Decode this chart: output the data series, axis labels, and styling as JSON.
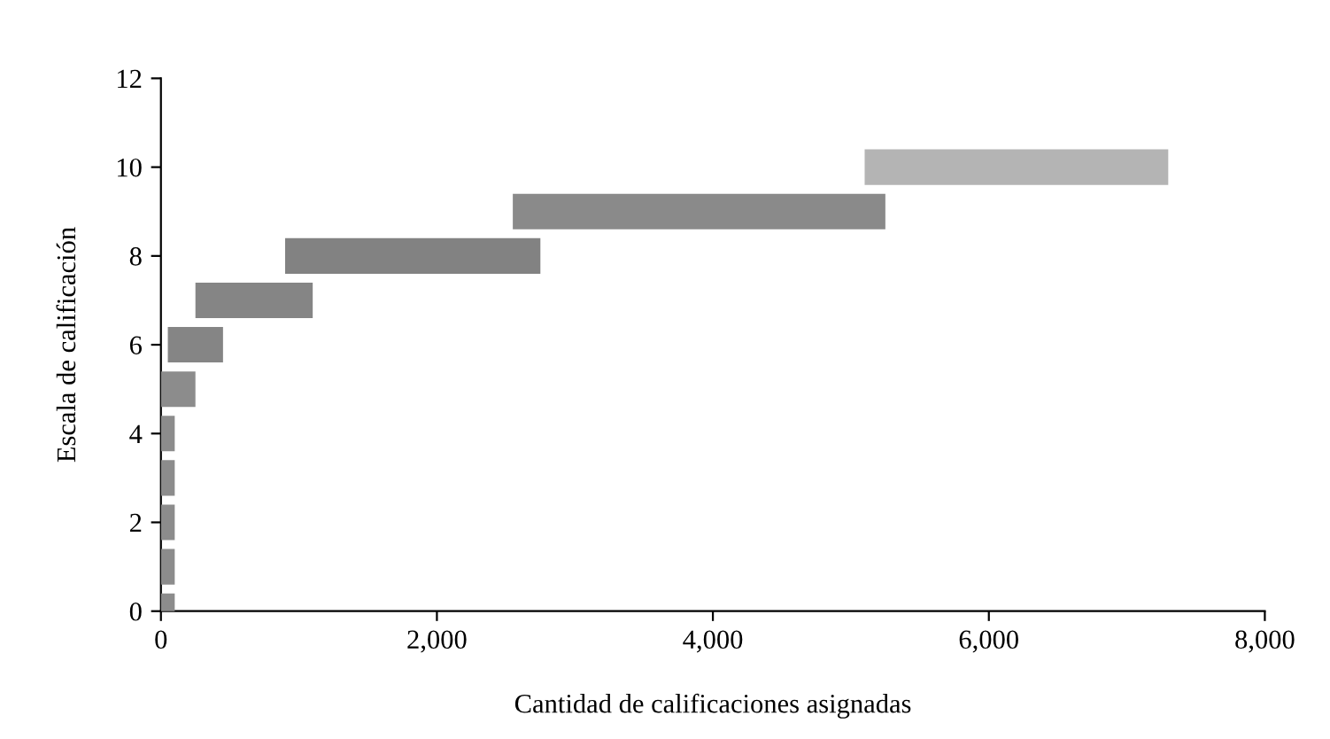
{
  "chart_data": {
    "type": "bar",
    "orientation": "horizontal",
    "xlabel": "Cantidad de calificaciones asignadas",
    "ylabel": "Escala de calificación",
    "x": [
      0,
      1,
      2,
      3,
      4,
      5,
      6,
      7,
      8,
      9,
      10
    ],
    "base": [
      0,
      0,
      0,
      0,
      0,
      0,
      50,
      250,
      900,
      2550,
      5100
    ],
    "values": [
      100,
      100,
      100,
      100,
      100,
      250,
      400,
      850,
      1850,
      2700,
      2200
    ],
    "colors": [
      "#8c8c8c",
      "#8c8c8c",
      "#8c8c8c",
      "#8c8c8c",
      "#8c8c8c",
      "#8c8c8c",
      "#858585",
      "#858585",
      "#828282",
      "#8a8a8a",
      "#b4b4b4"
    ],
    "xlim": [
      0,
      8000
    ],
    "xticks": [
      0,
      {
        "value": 2000,
        "label": "2,000"
      },
      {
        "value": 4000,
        "label": "4,000"
      },
      {
        "value": 6000,
        "label": "6,000"
      },
      {
        "value": 8000,
        "label": "8,000"
      }
    ],
    "ylim": [
      0,
      12
    ],
    "yticks": [
      0,
      2,
      4,
      6,
      8,
      10,
      12
    ],
    "grid": false,
    "legend": false
  }
}
